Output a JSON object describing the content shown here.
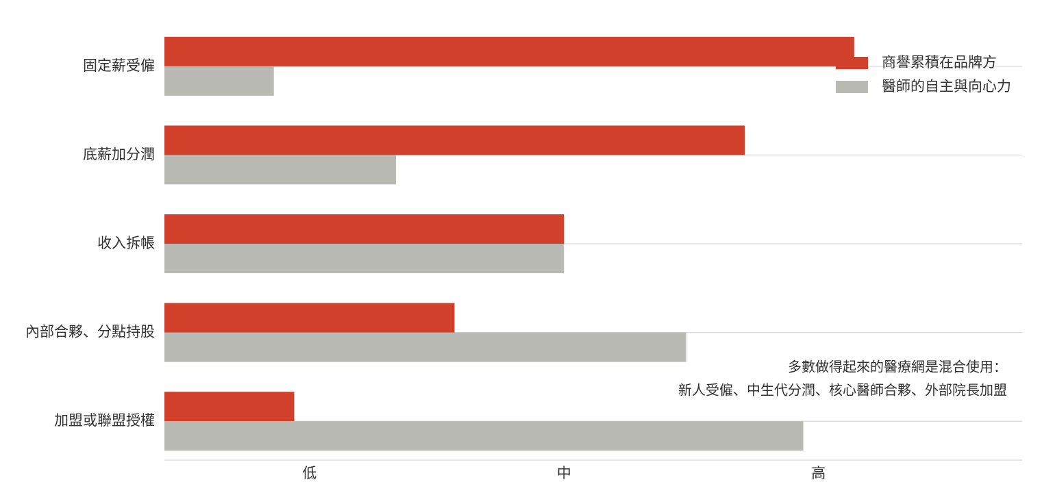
{
  "chart_data": {
    "type": "bar",
    "orientation": "horizontal",
    "categories": [
      "固定薪受僱",
      "底薪加分潤",
      "收入拆帳",
      "內部合夥、分點持股",
      "加盟或聯盟授權"
    ],
    "series": [
      {
        "name": "商譽累積在品牌方",
        "color": "#d0402b",
        "values": [
          3.14,
          2.71,
          2.0,
          1.57,
          0.94
        ]
      },
      {
        "name": "醫師的自主與向心力",
        "color": "#b8bab3",
        "values": [
          0.86,
          1.34,
          2.0,
          2.48,
          2.94
        ]
      }
    ],
    "xlim": [
      0.43,
      3.8
    ],
    "xticks": [
      {
        "value": 1,
        "label": "低"
      },
      {
        "value": 2,
        "label": "中"
      },
      {
        "value": 3,
        "label": "高"
      }
    ],
    "annotations": [
      "多數做得起來的醫療網是混合使用：",
      "新人受僱、中生代分潤、核心醫師合夥、外部院長加盟"
    ],
    "legend": "top-right"
  }
}
